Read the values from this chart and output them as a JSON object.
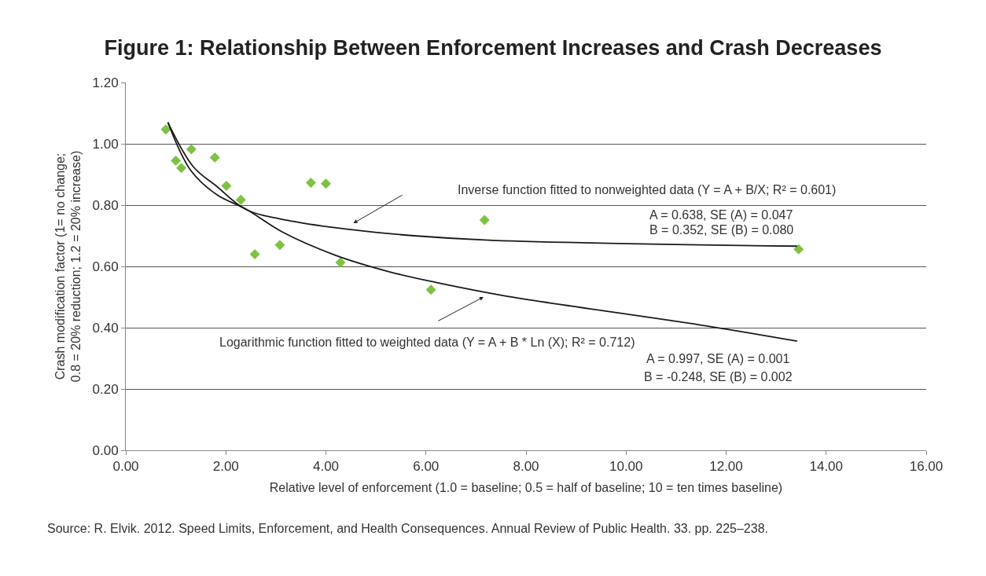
{
  "chart_data": {
    "type": "scatter",
    "title": "Figure 1: Relationship Between Enforcement Increases and Crash Decreases",
    "xlabel": "Relative level of enforcement (1.0 = baseline; 0.5 = half of baseline; 10 = ten times baseline)",
    "ylabel": "Crash modification factor (1= no change;\n0.8 = 20% reduction; 1.2 = 20% increase)",
    "grid": "y",
    "legend": false,
    "xlim": [
      0,
      16
    ],
    "ylim": [
      0,
      1.2
    ],
    "xticks": [
      {
        "value": 0,
        "label": "0.00"
      },
      {
        "value": 2,
        "label": "2.00"
      },
      {
        "value": 4,
        "label": "4.00"
      },
      {
        "value": 6,
        "label": "6.00"
      },
      {
        "value": 8,
        "label": "8.00"
      },
      {
        "value": 10,
        "label": "10.00"
      },
      {
        "value": 12,
        "label": "12.00"
      },
      {
        "value": 14,
        "label": "14.00"
      },
      {
        "value": 16,
        "label": "16.00"
      }
    ],
    "yticks": [
      {
        "value": 0,
        "label": "0.00"
      },
      {
        "value": 0.2,
        "label": "0.20"
      },
      {
        "value": 0.4,
        "label": "0.40"
      },
      {
        "value": 0.6,
        "label": "0.60"
      },
      {
        "value": 0.8,
        "label": "0.80"
      },
      {
        "value": 1,
        "label": "1.00"
      },
      {
        "value": 1.2,
        "label": "1.20"
      }
    ],
    "series": [
      {
        "type": "scatter",
        "marker": "diamond",
        "color": "#7dc242",
        "x": [
          0.8,
          1.0,
          1.11,
          1.31,
          1.78,
          2.01,
          2.3,
          2.58,
          3.08,
          3.7,
          4.0,
          4.29,
          6.1,
          7.17,
          13.45
        ],
        "values": [
          1.047,
          0.945,
          0.921,
          0.982,
          0.955,
          0.863,
          0.817,
          0.64,
          0.67,
          0.873,
          0.87,
          0.613,
          0.524,
          0.751,
          0.656
        ]
      },
      {
        "type": "line",
        "color": "#1a1a1a",
        "x": [
          0.84,
          1.35,
          1.82,
          2.4,
          3.34,
          4.5,
          5.76,
          7.33,
          13.42
        ],
        "values": [
          1.07,
          0.925,
          0.861,
          0.786,
          0.747,
          0.72,
          0.7,
          0.685,
          0.666
        ]
      },
      {
        "type": "line",
        "color": "#1a1a1a",
        "x": [
          0.84,
          1.3,
          1.82,
          2.4,
          3.13,
          4.18,
          5.28,
          6.28,
          7.54,
          11.64,
          13.42
        ],
        "values": [
          1.07,
          0.913,
          0.834,
          0.787,
          0.712,
          0.637,
          0.582,
          0.545,
          0.505,
          0.405,
          0.356
        ]
      }
    ],
    "annotations": [
      "Inverse function fitted to nonweighted data (Y = A + B/X; R² = 0.601)",
      "A = 0.638, SE (A) = 0.047",
      "B = 0.352, SE (B) = 0.080",
      "Logarithmic function fitted to weighted data (Y = A + B * Ln (X); R² = 0.712)",
      "A = 0.997, SE (A) = 0.001",
      "B = -0.248, SE (B) = 0.002",
      "Source: R. Elvik. 2012. Speed Limits, Enforcement, and Health Consequences. Annual Review of Public Health. 33. pp. 225–238."
    ]
  }
}
